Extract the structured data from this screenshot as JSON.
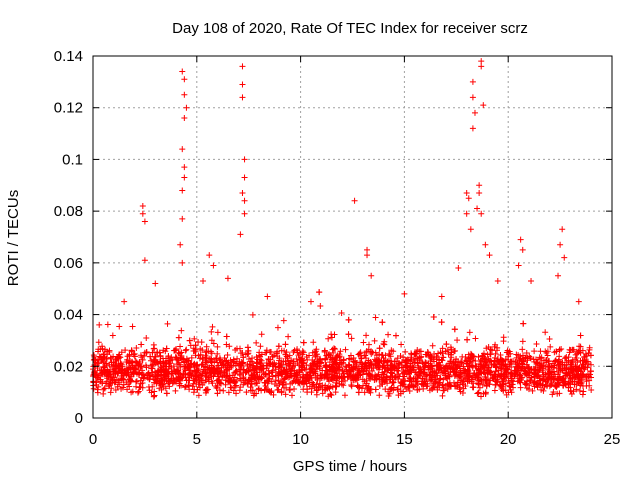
{
  "chart_data": {
    "type": "scatter",
    "title": "Day 108 of 2020, Rate Of TEC Index for receiver scrz",
    "xlabel": "GPS time / hours",
    "ylabel": "ROTI / TECUs",
    "xlim": [
      0,
      25
    ],
    "ylim": [
      0,
      0.14
    ],
    "xticks": [
      0,
      5,
      10,
      15,
      20,
      25
    ],
    "yticks": [
      0,
      0.02,
      0.04,
      0.06,
      0.08,
      0.1,
      0.12,
      0.14
    ],
    "xtick_labels": [
      "0",
      "5",
      "10",
      "15",
      "20",
      "25"
    ],
    "ytick_labels": [
      "0",
      "0.02",
      "0.04",
      "0.06",
      "0.08",
      "0.1",
      "0.12",
      "0.14"
    ],
    "grid": true,
    "marker": "+",
    "color": "#ff0000",
    "series": [
      {
        "name": "ROTI",
        "x_range": [
          0,
          24
        ],
        "baseline_range": [
          0.008,
          0.028
        ],
        "points": [
          {
            "x": 0.3,
            "y": 0.036
          },
          {
            "x": 1.5,
            "y": 0.045
          },
          {
            "x": 2.4,
            "y": 0.082
          },
          {
            "x": 2.4,
            "y": 0.079
          },
          {
            "x": 2.5,
            "y": 0.076
          },
          {
            "x": 2.5,
            "y": 0.061
          },
          {
            "x": 3.0,
            "y": 0.052
          },
          {
            "x": 4.3,
            "y": 0.134
          },
          {
            "x": 4.4,
            "y": 0.131
          },
          {
            "x": 4.4,
            "y": 0.125
          },
          {
            "x": 4.4,
            "y": 0.116
          },
          {
            "x": 4.5,
            "y": 0.12
          },
          {
            "x": 4.3,
            "y": 0.104
          },
          {
            "x": 4.4,
            "y": 0.097
          },
          {
            "x": 4.4,
            "y": 0.093
          },
          {
            "x": 4.3,
            "y": 0.088
          },
          {
            "x": 4.3,
            "y": 0.077
          },
          {
            "x": 4.2,
            "y": 0.067
          },
          {
            "x": 4.3,
            "y": 0.06
          },
          {
            "x": 5.3,
            "y": 0.053
          },
          {
            "x": 5.6,
            "y": 0.063
          },
          {
            "x": 5.8,
            "y": 0.059
          },
          {
            "x": 6.5,
            "y": 0.054
          },
          {
            "x": 7.2,
            "y": 0.136
          },
          {
            "x": 7.2,
            "y": 0.129
          },
          {
            "x": 7.2,
            "y": 0.124
          },
          {
            "x": 7.3,
            "y": 0.1
          },
          {
            "x": 7.3,
            "y": 0.093
          },
          {
            "x": 7.2,
            "y": 0.087
          },
          {
            "x": 7.3,
            "y": 0.084
          },
          {
            "x": 7.3,
            "y": 0.079
          },
          {
            "x": 7.1,
            "y": 0.071
          },
          {
            "x": 8.4,
            "y": 0.047
          },
          {
            "x": 10.5,
            "y": 0.045
          },
          {
            "x": 12.6,
            "y": 0.084
          },
          {
            "x": 13.2,
            "y": 0.065
          },
          {
            "x": 13.2,
            "y": 0.063
          },
          {
            "x": 13.4,
            "y": 0.055
          },
          {
            "x": 15.0,
            "y": 0.048
          },
          {
            "x": 16.8,
            "y": 0.047
          },
          {
            "x": 17.6,
            "y": 0.058
          },
          {
            "x": 18.0,
            "y": 0.087
          },
          {
            "x": 18.1,
            "y": 0.085
          },
          {
            "x": 18.0,
            "y": 0.079
          },
          {
            "x": 18.2,
            "y": 0.073
          },
          {
            "x": 18.3,
            "y": 0.13
          },
          {
            "x": 18.3,
            "y": 0.124
          },
          {
            "x": 18.4,
            "y": 0.118
          },
          {
            "x": 18.3,
            "y": 0.112
          },
          {
            "x": 18.5,
            "y": 0.081
          },
          {
            "x": 18.6,
            "y": 0.09
          },
          {
            "x": 18.7,
            "y": 0.138
          },
          {
            "x": 18.7,
            "y": 0.136
          },
          {
            "x": 18.8,
            "y": 0.121
          },
          {
            "x": 18.6,
            "y": 0.087
          },
          {
            "x": 18.7,
            "y": 0.079
          },
          {
            "x": 18.9,
            "y": 0.067
          },
          {
            "x": 19.1,
            "y": 0.063
          },
          {
            "x": 19.5,
            "y": 0.053
          },
          {
            "x": 20.6,
            "y": 0.069
          },
          {
            "x": 20.7,
            "y": 0.065
          },
          {
            "x": 20.5,
            "y": 0.059
          },
          {
            "x": 21.1,
            "y": 0.053
          },
          {
            "x": 22.6,
            "y": 0.073
          },
          {
            "x": 22.5,
            "y": 0.067
          },
          {
            "x": 22.7,
            "y": 0.062
          },
          {
            "x": 22.4,
            "y": 0.055
          },
          {
            "x": 23.4,
            "y": 0.045
          }
        ]
      }
    ]
  }
}
